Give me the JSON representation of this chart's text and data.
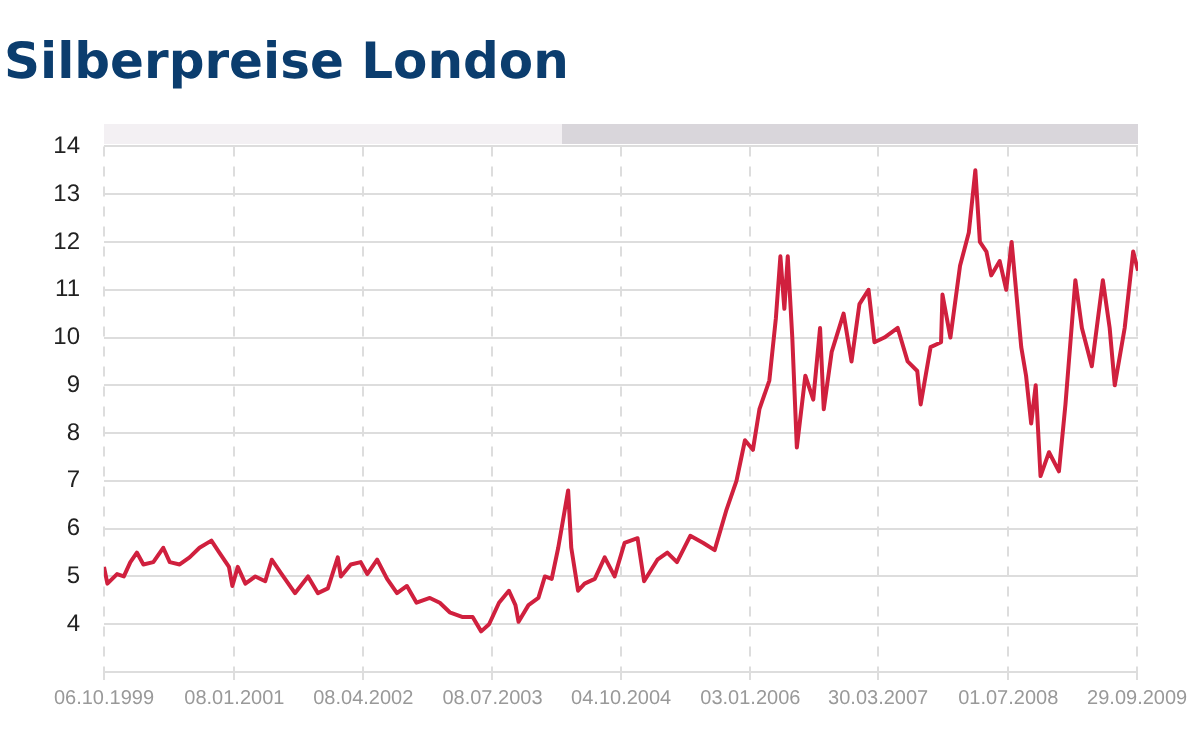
{
  "chart_data": {
    "type": "line",
    "title": "Silberpreise London",
    "x": [
      "1999-10-06",
      "1999-10-18",
      "1999-11-21",
      "1999-12-15",
      "2000-01-07",
      "2000-01-30",
      "2000-02-22",
      "2000-03-28",
      "2000-05-02",
      "2000-05-25",
      "2000-06-29",
      "2000-08-03",
      "2000-09-07",
      "2000-10-19",
      "2000-11-16",
      "2000-12-20",
      "2001-01-01",
      "2001-01-20",
      "2001-02-16",
      "2001-03-23",
      "2001-04-27",
      "2001-05-20",
      "2001-06-24",
      "2001-08-10",
      "2001-09-25",
      "2001-10-30",
      "2001-12-04",
      "2002-01-08",
      "2002-01-19",
      "2002-02-23",
      "2002-03-30",
      "2002-04-22",
      "2002-05-27",
      "2002-07-01",
      "2002-08-05",
      "2002-09-09",
      "2002-10-13",
      "2002-11-29",
      "2003-01-03",
      "2003-02-07",
      "2003-03-25",
      "2003-04-29",
      "2003-05-29",
      "2003-06-26",
      "2003-07-31",
      "2003-09-04",
      "2003-09-27",
      "2003-10-08",
      "2003-11-12",
      "2003-12-17",
      "2004-01-09",
      "2004-02-02",
      "2004-02-25",
      "2004-03-31",
      "2004-04-11",
      "2004-05-05",
      "2004-05-28",
      "2004-07-03",
      "2004-08-07",
      "2004-09-11",
      "2004-10-16",
      "2004-12-01",
      "2004-12-24",
      "2005-02-09",
      "2005-03-16",
      "2005-04-19",
      "2005-06-05",
      "2005-07-21",
      "2005-08-30",
      "2005-10-11",
      "2005-11-15",
      "2005-12-15",
      "2006-01-12",
      "2006-02-04",
      "2006-03-11",
      "2006-04-03",
      "2006-04-19",
      "2006-05-03",
      "2006-05-15",
      "2006-05-31",
      "2006-06-16",
      "2006-07-16",
      "2006-08-13",
      "2006-09-06",
      "2006-09-19",
      "2006-10-17",
      "2006-11-28",
      "2006-12-26",
      "2007-01-23",
      "2007-02-24",
      "2007-03-17",
      "2007-04-21",
      "2007-06-07",
      "2007-07-12",
      "2007-08-15",
      "2007-08-27",
      "2007-10-01",
      "2007-11-07",
      "2007-11-12",
      "2007-12-10",
      "2008-01-13",
      "2008-02-13",
      "2008-03-07",
      "2008-03-23",
      "2008-04-15",
      "2008-05-02",
      "2008-06-01",
      "2008-06-24",
      "2008-07-13",
      "2008-08-16",
      "2008-09-02",
      "2008-09-20",
      "2008-10-06",
      "2008-10-23",
      "2008-11-22",
      "2008-12-27",
      "2009-01-19",
      "2009-02-23",
      "2009-03-18",
      "2009-04-22",
      "2009-05-31",
      "2009-06-24",
      "2009-07-12",
      "2009-08-16",
      "2009-09-15",
      "2009-10-02"
    ],
    "series": [
      {
        "color": "#d0203e",
        "values": [
          5.2,
          4.85,
          5.05,
          5.0,
          5.3,
          5.5,
          5.25,
          5.3,
          5.6,
          5.3,
          5.25,
          5.4,
          5.6,
          5.75,
          5.5,
          5.2,
          4.8,
          5.2,
          4.85,
          5.0,
          4.9,
          5.35,
          5.05,
          4.65,
          5.0,
          4.65,
          4.75,
          5.4,
          5.0,
          5.25,
          5.3,
          5.05,
          5.35,
          4.95,
          4.65,
          4.8,
          4.45,
          4.55,
          4.45,
          4.25,
          4.15,
          4.15,
          3.85,
          4.0,
          4.45,
          4.7,
          4.4,
          4.05,
          4.4,
          4.55,
          5.0,
          4.95,
          5.6,
          6.8,
          5.6,
          4.7,
          4.85,
          4.95,
          5.4,
          5.0,
          5.7,
          5.8,
          4.9,
          5.35,
          5.5,
          5.3,
          5.85,
          5.7,
          5.55,
          6.4,
          7.0,
          7.85,
          7.65,
          8.5,
          9.1,
          10.4,
          11.7,
          10.6,
          11.7,
          10.0,
          7.7,
          9.2,
          8.7,
          10.2,
          8.5,
          9.7,
          10.5,
          9.5,
          10.7,
          11.0,
          9.9,
          10.0,
          10.2,
          9.5,
          9.3,
          8.6,
          9.8,
          9.9,
          10.9,
          10.0,
          11.5,
          12.2,
          13.5,
          12.0,
          11.8,
          11.3,
          11.6,
          11.0,
          12.0,
          9.8,
          9.2,
          8.2,
          9.0,
          7.1,
          7.6,
          7.2,
          8.6,
          11.2,
          10.2,
          9.4,
          11.2,
          10.2,
          9.0,
          10.2,
          11.8,
          11.4
        ]
      }
    ],
    "xlim": [
      "1999-10-06",
      "2009-10-02"
    ],
    "xticks": [
      {
        "value": "1999-10-06",
        "label": "06.10.1999"
      },
      {
        "value": "2001-01-08",
        "label": "08.01.2001"
      },
      {
        "value": "2002-04-08",
        "label": "08.04.2002"
      },
      {
        "value": "2003-07-08",
        "label": "08.07.2003"
      },
      {
        "value": "2004-10-04",
        "label": "04.10.2004"
      },
      {
        "value": "2006-01-03",
        "label": "03.01.2006"
      },
      {
        "value": "2007-03-30",
        "label": "30.03.2007"
      },
      {
        "value": "2008-07-01",
        "label": "01.07.2008"
      },
      {
        "value": "2009-09-29",
        "label": "29.09.2009"
      }
    ],
    "ylim": [
      3,
      14
    ],
    "yticks": [
      {
        "value": 3,
        "label": null
      },
      4,
      5,
      6,
      7,
      8,
      9,
      10,
      11,
      12,
      13,
      14
    ],
    "grid": true,
    "legend": false,
    "marker": "none",
    "line_style": "solid"
  }
}
